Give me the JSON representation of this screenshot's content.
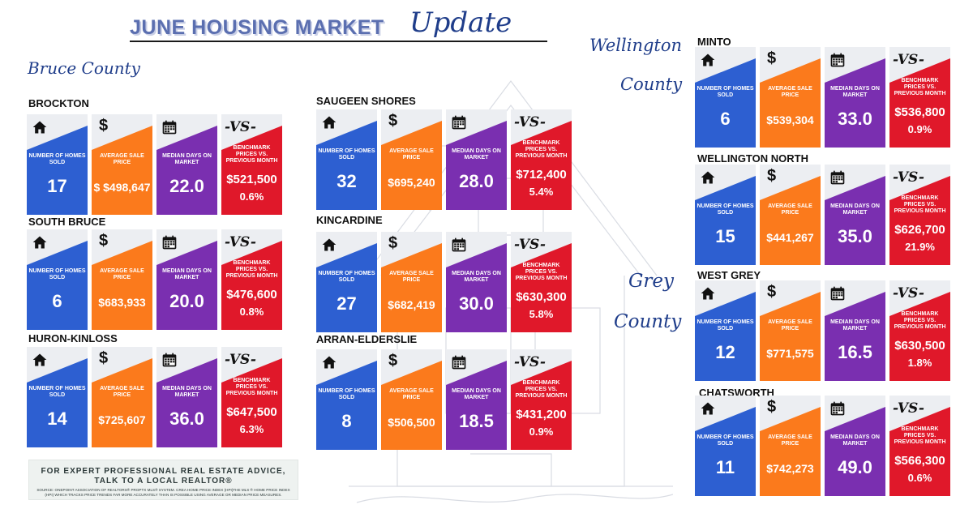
{
  "title": {
    "main": "JUNE HOUSING MARKET",
    "script": "Update"
  },
  "counties": {
    "bruce": "Bruce County",
    "wellington_line1": "Wellington",
    "wellington_line2": "County",
    "grey_line1": "Grey",
    "grey_line2": "County"
  },
  "card_labels": {
    "homes_sold": "NUMBER OF HOMES SOLD",
    "avg_price": "AVERAGE SALE PRICE",
    "median_days": "MEDIAN DAYS ON MARKET",
    "benchmark": "BENCHMARK PRICES VS. PREVIOUS MONTH"
  },
  "icons": {
    "homes_sold": "house-icon",
    "avg_price": "dollar-icon",
    "median_days": "calendar-icon",
    "benchmark": "vs-icon",
    "vs_text": "-VS-",
    "dollar_text": "$"
  },
  "colors": {
    "blue": "#2d5fd1",
    "orange": "#fb7a1c",
    "purple": "#7a2fb0",
    "red": "#e0182a",
    "title": "#5b6fb0",
    "script": "#1f3d8a"
  },
  "regions": [
    {
      "id": "brockton",
      "name": "BROCKTON",
      "homes_sold": "17",
      "avg_price": "$ $498,647",
      "median_days": "22.0",
      "benchmark": "$521,500",
      "change": "0.6%"
    },
    {
      "id": "south-bruce",
      "name": "SOUTH BRUCE",
      "homes_sold": "6",
      "avg_price": "$683,933",
      "median_days": "20.0",
      "benchmark": "$476,600",
      "change": "0.8%"
    },
    {
      "id": "huron-kinloss",
      "name": "HURON-KINLOSS",
      "homes_sold": "14",
      "avg_price": "$725,607",
      "median_days": "36.0",
      "benchmark": "$647,500",
      "change": "6.3%"
    },
    {
      "id": "saugeen-shores",
      "name": "SAUGEEN SHORES",
      "homes_sold": "32",
      "avg_price": "$695,240",
      "median_days": "28.0",
      "benchmark": "$712,400",
      "change": "5.4%"
    },
    {
      "id": "kincardine",
      "name": "KINCARDINE",
      "homes_sold": "27",
      "avg_price": "$682,419",
      "median_days": "30.0",
      "benchmark": "$630,300",
      "change": "5.8%"
    },
    {
      "id": "arran-elderslie",
      "name": "ARRAN-ELDERSLIE",
      "homes_sold": "8",
      "avg_price": "$506,500",
      "median_days": "18.5",
      "benchmark": "$431,200",
      "change": "0.9%"
    },
    {
      "id": "minto",
      "name": "MINTO",
      "homes_sold": "6",
      "avg_price": "$539,304",
      "median_days": "33.0",
      "benchmark": "$536,800",
      "change": "0.9%"
    },
    {
      "id": "wellington-north",
      "name": "WELLINGTON NORTH",
      "homes_sold": "15",
      "avg_price": "$441,267",
      "median_days": "35.0",
      "benchmark": "$626,700",
      "change": "21.9%"
    },
    {
      "id": "west-grey",
      "name": "WEST GREY",
      "homes_sold": "12",
      "avg_price": "$771,575",
      "median_days": "16.5",
      "benchmark": "$630,500",
      "change": "1.8%"
    },
    {
      "id": "chatsworth",
      "name": "CHATSWORTH",
      "homes_sold": "11",
      "avg_price": "$742,273",
      "median_days": "49.0",
      "benchmark": "$566,300",
      "change": "0.6%"
    }
  ],
  "footer": {
    "line1": "FOR EXPERT PROFESSIONAL REAL ESTATE ADVICE,",
    "line2": "TALK TO A LOCAL REALTOR®",
    "source": "SOURCE: ONEPOINT ASSOCIATION OF REALTORS® PROPTX MLS® SYSTEM. CREA HOME PRICE INDEX (HPI)THE MLS ® HOME PRICE INDEX (HPI) WHICH TRACKS PRICE TRENDS FAR MORE ACCURATELY THAN IS POSSIBLE USING AVERAGE OR MEDIAN PRICE MEASURES."
  }
}
